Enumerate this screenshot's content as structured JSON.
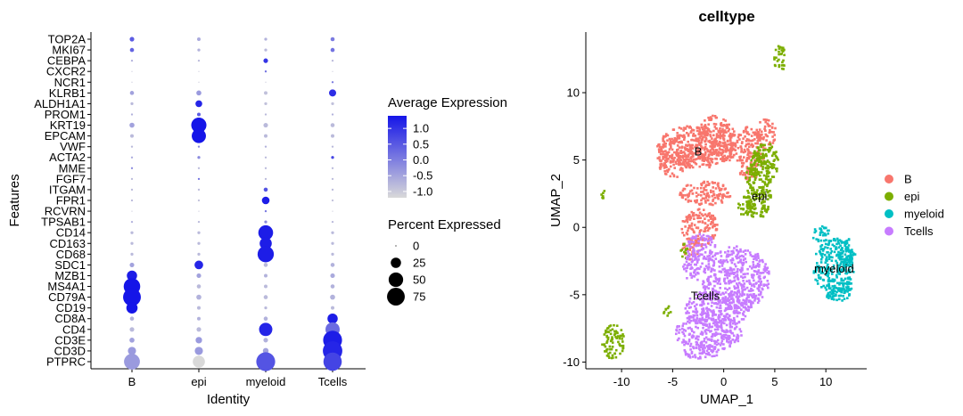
{
  "chart_data": [
    {
      "type": "dot",
      "xlabel": "Identity",
      "ylabel": "Features",
      "categories": [
        "B",
        "epi",
        "myeloid",
        "Tcells"
      ],
      "features": [
        "TOP2A",
        "MKI67",
        "CEBPA",
        "CXCR2",
        "NCR1",
        "KLRB1",
        "ALDH1A1",
        "PROM1",
        "KRT19",
        "EPCAM",
        "VWF",
        "ACTA2",
        "MME",
        "FGF7",
        "ITGAM",
        "FPR1",
        "RCVRN",
        "TPSAB1",
        "CD14",
        "CD163",
        "CD68",
        "SDC1",
        "MZB1",
        "MS4A1",
        "CD79A",
        "CD19",
        "CD8A",
        "CD4",
        "CD3E",
        "CD3D",
        "PTPRC"
      ],
      "percent_expressed": [
        [
          5,
          3,
          2,
          4
        ],
        [
          4,
          2,
          2,
          4
        ],
        [
          1,
          1,
          5,
          1
        ],
        [
          0,
          0,
          1,
          0
        ],
        [
          0,
          0,
          0,
          1
        ],
        [
          4,
          6,
          3,
          12
        ],
        [
          2,
          11,
          2,
          2
        ],
        [
          1,
          3,
          1,
          1
        ],
        [
          6,
          55,
          5,
          4
        ],
        [
          3,
          48,
          3,
          3
        ],
        [
          1,
          1,
          1,
          1
        ],
        [
          1,
          2,
          1,
          2
        ],
        [
          1,
          1,
          1,
          1
        ],
        [
          1,
          1,
          1,
          1
        ],
        [
          1,
          1,
          4,
          1
        ],
        [
          1,
          1,
          14,
          1
        ],
        [
          0,
          0,
          1,
          0
        ],
        [
          1,
          1,
          2,
          1
        ],
        [
          2,
          2,
          52,
          2
        ],
        [
          2,
          2,
          35,
          2
        ],
        [
          2,
          2,
          63,
          2
        ],
        [
          5,
          18,
          4,
          4
        ],
        [
          25,
          5,
          3,
          5
        ],
        [
          65,
          4,
          3,
          4
        ],
        [
          75,
          6,
          4,
          6
        ],
        [
          30,
          3,
          2,
          3
        ],
        [
          4,
          3,
          4,
          25
        ],
        [
          5,
          5,
          42,
          48
        ],
        [
          6,
          10,
          5,
          85
        ],
        [
          16,
          16,
          8,
          90
        ],
        [
          60,
          35,
          85,
          80
        ]
      ],
      "average_expression": [
        [
          0.6,
          -0.4,
          -0.5,
          0.2
        ],
        [
          0.5,
          -0.5,
          -0.6,
          0.3
        ],
        [
          -0.5,
          -0.6,
          1.1,
          -0.6
        ],
        [
          -0.8,
          -0.8,
          0.3,
          -0.8
        ],
        [
          -0.8,
          -0.8,
          -0.8,
          0.2
        ],
        [
          -0.3,
          -0.2,
          -0.7,
          1.2
        ],
        [
          -0.6,
          1.3,
          -0.7,
          -0.7
        ],
        [
          -0.5,
          0.6,
          -0.6,
          -0.5
        ],
        [
          -0.3,
          1.5,
          -0.6,
          -0.6
        ],
        [
          -0.6,
          1.5,
          -0.6,
          -0.6
        ],
        [
          -0.6,
          0.0,
          -0.5,
          -0.6
        ],
        [
          -0.4,
          0.0,
          -0.6,
          0.9
        ],
        [
          0.0,
          -0.6,
          -0.6,
          -0.6
        ],
        [
          -0.6,
          0.3,
          -0.6,
          -0.6
        ],
        [
          -0.6,
          -0.6,
          0.7,
          -0.6
        ],
        [
          -0.6,
          -0.7,
          1.4,
          -0.7
        ],
        [
          -0.8,
          -0.8,
          0.2,
          -0.8
        ],
        [
          -0.5,
          -0.6,
          0.0,
          -0.6
        ],
        [
          -0.6,
          -0.6,
          1.4,
          -0.6
        ],
        [
          -0.6,
          -0.6,
          1.4,
          -0.6
        ],
        [
          -0.6,
          -0.6,
          1.4,
          -0.6
        ],
        [
          -0.3,
          1.3,
          -0.6,
          -0.5
        ],
        [
          1.4,
          -0.3,
          -0.5,
          -0.4
        ],
        [
          1.5,
          -0.6,
          -0.6,
          -0.5
        ],
        [
          1.5,
          -0.5,
          -0.6,
          -0.5
        ],
        [
          1.5,
          -0.6,
          -0.6,
          -0.6
        ],
        [
          -0.5,
          -0.5,
          -0.5,
          1.4
        ],
        [
          -0.6,
          -0.6,
          1.3,
          0.4
        ],
        [
          -0.3,
          -0.2,
          -0.5,
          1.4
        ],
        [
          -0.2,
          -0.2,
          -0.3,
          1.3
        ],
        [
          -0.2,
          -1.0,
          0.7,
          0.9
        ]
      ],
      "legend_color": {
        "title": "Average Expression",
        "ticks": [
          1.0,
          0.5,
          0.0,
          -0.5,
          -1.0
        ],
        "tick_labels": [
          "1.0",
          "0.5",
          "0.0",
          "-0.5",
          "-1.0"
        ],
        "low_color": "#d9d9d9",
        "high_color": "#1515e8"
      },
      "legend_size": {
        "title": "Percent Expressed",
        "values": [
          0,
          25,
          50,
          75
        ],
        "labels": [
          "0",
          "25",
          "50",
          "75"
        ]
      }
    },
    {
      "type": "scatter",
      "title": "celltype",
      "xlabel": "UMAP_1",
      "ylabel": "UMAP_2",
      "xlim": [
        -13.5,
        14
      ],
      "ylim": [
        -10.5,
        14.5
      ],
      "xticks": [
        -10,
        -5,
        0,
        5,
        10
      ],
      "xtick_labels": [
        "-10",
        "-5",
        "0",
        "5",
        "10"
      ],
      "yticks": [
        -10,
        -5,
        0,
        5,
        10
      ],
      "ytick_labels": [
        "-10",
        "-5",
        "0",
        "5",
        "10"
      ],
      "clusters": [
        {
          "name": "B",
          "color": "#f8766d",
          "label_at": [
            -2.5,
            5.6
          ],
          "blobs": [
            [
              -2.5,
              6.0,
              4.0,
              1.6
            ],
            [
              -4.8,
              5.2,
              1.8,
              1.5
            ],
            [
              -0.8,
              6.5,
              2.0,
              1.8
            ],
            [
              2.5,
              5.5,
              1.5,
              2.0
            ],
            [
              4.2,
              7.0,
              0.9,
              1.2
            ],
            [
              -2.3,
              0.0,
              1.8,
              1.4
            ],
            [
              -3.2,
              -1.5,
              0.8,
              0.9
            ],
            [
              -1.8,
              2.5,
              2.5,
              0.9
            ]
          ]
        },
        {
          "name": "epi",
          "color": "#7cae00",
          "label_at": [
            3.5,
            2.3
          ],
          "blobs": [
            [
              3.4,
              3.0,
              1.3,
              2.5
            ],
            [
              4.0,
              4.8,
              1.4,
              1.5
            ],
            [
              2.2,
              1.5,
              0.8,
              0.8
            ],
            [
              5.5,
              12.5,
              0.6,
              1.0
            ],
            [
              -10.8,
              -8.5,
              1.1,
              1.3
            ],
            [
              -11.8,
              2.4,
              0.3,
              0.4
            ],
            [
              -3.8,
              -1.8,
              0.4,
              0.6
            ],
            [
              -5.5,
              -6.2,
              0.4,
              0.4
            ]
          ]
        },
        {
          "name": "myeloid",
          "color": "#00bfc4",
          "label_at": [
            10.8,
            -3.1
          ],
          "blobs": [
            [
              10.8,
              -3.0,
              2.0,
              2.2
            ],
            [
              11.2,
              -4.6,
              1.4,
              0.9
            ],
            [
              9.5,
              -0.5,
              0.9,
              0.6
            ],
            [
              12.0,
              -2.0,
              0.9,
              1.2
            ]
          ]
        },
        {
          "name": "Tcells",
          "color": "#c77cff",
          "label_at": [
            -1.8,
            -5.1
          ],
          "blobs": [
            [
              1.2,
              -3.8,
              3.3,
              2.4
            ],
            [
              -0.5,
              -6.0,
              3.3,
              1.4
            ],
            [
              -1.5,
              -7.8,
              3.3,
              1.4
            ],
            [
              -2.2,
              -1.5,
              1.4,
              1.0
            ],
            [
              -3.0,
              -3.0,
              1.0,
              1.0
            ],
            [
              -2.2,
              -9.2,
              1.8,
              0.6
            ]
          ]
        }
      ],
      "legend": {
        "entries": [
          "B",
          "epi",
          "myeloid",
          "Tcells"
        ],
        "colors": [
          "#f8766d",
          "#7cae00",
          "#00bfc4",
          "#c77cff"
        ]
      }
    }
  ]
}
